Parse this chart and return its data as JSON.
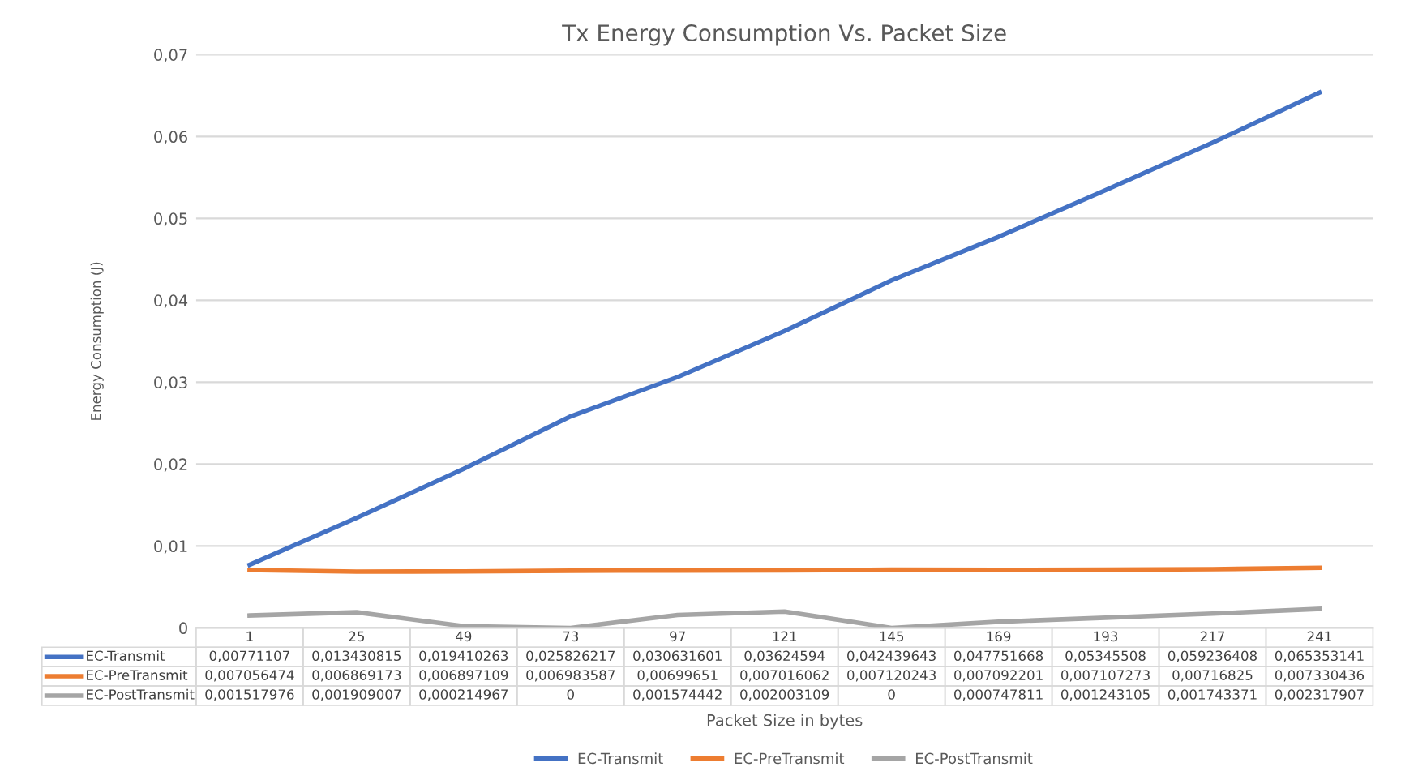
{
  "chart_data": {
    "type": "line",
    "title": "Tx Energy Consumption Vs. Packet Size",
    "xlabel": "Packet Size in bytes",
    "ylabel": "Energy Consumption (J)",
    "categories": [
      "1",
      "25",
      "49",
      "73",
      "97",
      "121",
      "145",
      "169",
      "193",
      "217",
      "241"
    ],
    "series": [
      {
        "name": "EC-Transmit",
        "color": "#4472c4",
        "values": [
          0.00771107,
          0.013430815,
          0.019410263,
          0.025826217,
          0.030631601,
          0.03624594,
          0.042439643,
          0.047751668,
          0.05345508,
          0.059236408,
          0.065353141
        ],
        "value_labels": [
          "0,00771107",
          "0,013430815",
          "0,019410263",
          "0,025826217",
          "0,030631601",
          "0,03624594",
          "0,042439643",
          "0,047751668",
          "0,05345508",
          "0,059236408",
          "0,065353141"
        ]
      },
      {
        "name": "EC-PreTransmit",
        "color": "#ed7d31",
        "values": [
          0.007056474,
          0.006869173,
          0.006897109,
          0.006983587,
          0.00699651,
          0.007016062,
          0.007120243,
          0.007092201,
          0.007107273,
          0.00716825,
          0.007330436
        ],
        "value_labels": [
          "0,007056474",
          "0,006869173",
          "0,006897109",
          "0,006983587",
          "0,00699651",
          "0,007016062",
          "0,007120243",
          "0,007092201",
          "0,007107273",
          "0,00716825",
          "0,007330436"
        ]
      },
      {
        "name": "EC-PostTransmit",
        "color": "#a5a5a5",
        "values": [
          0.001517976,
          0.001909007,
          0.000214967,
          0,
          0.001574442,
          0.002003109,
          0,
          0.000747811,
          0.001243105,
          0.001743371,
          0.002317907
        ],
        "value_labels": [
          "0,001517976",
          "0,001909007",
          "0,000214967",
          "0",
          "0,001574442",
          "0,002003109",
          "0",
          "0,000747811",
          "0,001243105",
          "0,001743371",
          "0,002317907"
        ]
      }
    ],
    "ylim": [
      0,
      0.07
    ],
    "yticks": [
      0,
      {
        "value": 0.01,
        "label": "0,01"
      },
      {
        "value": 0.02,
        "label": "0,02"
      },
      {
        "value": 0.03,
        "label": "0,03"
      },
      {
        "value": 0.04,
        "label": "0,04"
      },
      {
        "value": 0.05,
        "label": "0,05"
      },
      {
        "value": 0.06,
        "label": "0,06"
      },
      {
        "value": 0.07,
        "label": "0,07"
      }
    ],
    "grid": "y",
    "legend": "bottom",
    "marker": "none",
    "line_style": "solid"
  }
}
